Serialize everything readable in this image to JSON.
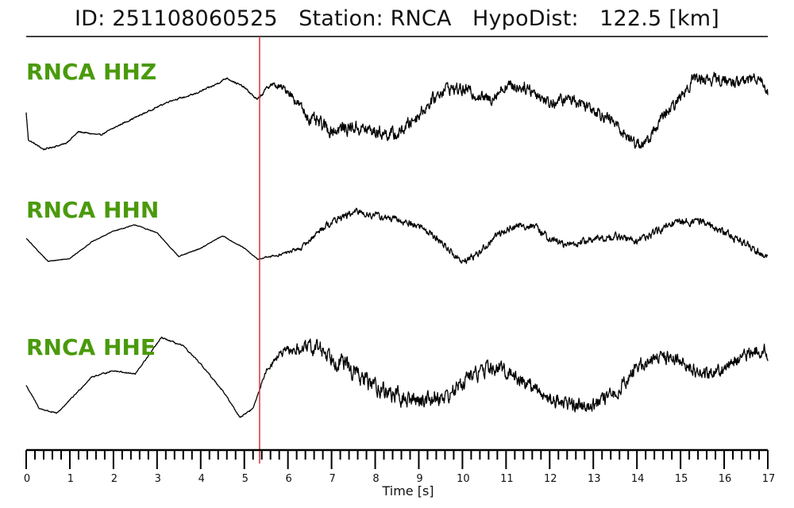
{
  "title": "ID: 251108060525   Station: RNCA   HypoDist:   122.5 [km]",
  "colors": {
    "channel_label": "#4a9a0c",
    "trace": "#000000",
    "pick_line": "#e03030",
    "axis": "#000000"
  },
  "chart_data": {
    "type": "line",
    "title": "ID: 251108060525   Station: RNCA   HypoDist:   122.5 [km]",
    "xlabel": "Time [s]",
    "ylabel": "",
    "xlim": [
      0,
      17
    ],
    "x_ticks": [
      "0",
      "1",
      "2",
      "3",
      "4",
      "5",
      "6",
      "7",
      "8",
      "9",
      "10",
      "11",
      "12",
      "13",
      "14",
      "15",
      "16",
      "17"
    ],
    "minor_tick_step": 0.2,
    "pick_time": 5.35,
    "grid": false,
    "series": [
      {
        "name": "RNCA HHZ",
        "noise": 0.12,
        "envelope": [
          [
            0,
            0.1
          ],
          [
            3.0,
            0.1
          ],
          [
            5.3,
            0.15
          ],
          [
            5.9,
            0.55
          ],
          [
            6.8,
            1.0
          ],
          [
            9.0,
            0.85
          ],
          [
            12.5,
            0.85
          ],
          [
            17,
            0.8
          ]
        ],
        "x": [
          0,
          0.05,
          0.4,
          0.9,
          1.2,
          1.7,
          2.2,
          2.8,
          3.3,
          3.8,
          4.3,
          4.6,
          5.0,
          5.3,
          5.6,
          6.0,
          6.5,
          7.0,
          7.5,
          8.0,
          8.5,
          9.0,
          9.6,
          10.1,
          10.6,
          11.0,
          11.5,
          12.0,
          12.5,
          13.0,
          13.5,
          13.9,
          14.2,
          14.5,
          14.9,
          15.3,
          15.8,
          16.3,
          16.8,
          17.0
        ],
        "y": [
          -0.15,
          -0.72,
          -0.92,
          -0.8,
          -0.55,
          -0.62,
          -0.38,
          -0.12,
          0.1,
          0.22,
          0.42,
          0.58,
          0.38,
          0.12,
          0.45,
          0.32,
          -0.28,
          -0.52,
          -0.45,
          -0.55,
          -0.62,
          -0.18,
          0.38,
          0.32,
          0.12,
          0.42,
          0.38,
          0.05,
          0.15,
          -0.05,
          -0.38,
          -0.75,
          -0.82,
          -0.35,
          0.05,
          0.58,
          0.55,
          0.48,
          0.62,
          0.3
        ]
      },
      {
        "name": "RNCA HHN",
        "noise": 0.1,
        "envelope": [
          [
            0,
            0.08
          ],
          [
            5.3,
            0.1
          ],
          [
            6.0,
            0.35
          ],
          [
            7.0,
            0.75
          ],
          [
            9.5,
            0.75
          ],
          [
            12.0,
            0.8
          ],
          [
            17,
            0.85
          ]
        ],
        "x": [
          0,
          0.5,
          1.0,
          1.5,
          2.0,
          2.5,
          3.0,
          3.5,
          4.0,
          4.5,
          5.0,
          5.3,
          5.8,
          6.3,
          6.8,
          7.2,
          7.6,
          8.1,
          8.6,
          9.1,
          9.6,
          10.0,
          10.4,
          10.8,
          11.2,
          11.6,
          12.0,
          12.4,
          13.0,
          13.5,
          14.0,
          14.5,
          15.0,
          15.5,
          16.0,
          16.5,
          17.0
        ],
        "y": [
          -0.05,
          -0.68,
          -0.6,
          -0.15,
          0.15,
          0.32,
          0.1,
          -0.55,
          -0.32,
          0.02,
          -0.32,
          -0.62,
          -0.5,
          -0.32,
          0.25,
          0.52,
          0.68,
          0.55,
          0.42,
          0.25,
          -0.25,
          -0.72,
          -0.42,
          0.05,
          0.28,
          0.3,
          -0.05,
          -0.25,
          -0.08,
          0.0,
          -0.12,
          0.15,
          0.42,
          0.42,
          0.12,
          -0.2,
          -0.55
        ]
      },
      {
        "name": "RNCA HHE",
        "noise": 0.12,
        "envelope": [
          [
            0,
            0.08
          ],
          [
            5.3,
            0.1
          ],
          [
            6.0,
            0.7
          ],
          [
            7.0,
            1.25
          ],
          [
            8.5,
            1.1
          ],
          [
            11.0,
            1.0
          ],
          [
            17,
            0.85
          ]
        ],
        "x": [
          0,
          0.3,
          0.7,
          1.0,
          1.5,
          2.0,
          2.5,
          2.8,
          3.1,
          3.6,
          4.0,
          4.5,
          4.9,
          5.2,
          5.5,
          5.8,
          6.2,
          6.7,
          7.2,
          7.7,
          8.2,
          8.7,
          9.2,
          9.7,
          10.1,
          10.6,
          11.0,
          11.5,
          12.0,
          12.6,
          13.1,
          13.5,
          14.0,
          14.5,
          15.0,
          15.5,
          16.0,
          16.5,
          16.9,
          17.0
        ],
        "y": [
          -0.25,
          -0.72,
          -0.82,
          -0.55,
          -0.08,
          0.05,
          -0.02,
          0.35,
          0.72,
          0.55,
          0.18,
          -0.35,
          -0.9,
          -0.72,
          0.05,
          0.38,
          0.48,
          0.52,
          0.25,
          -0.12,
          -0.35,
          -0.55,
          -0.52,
          -0.45,
          -0.1,
          0.1,
          0.05,
          -0.22,
          -0.52,
          -0.65,
          -0.62,
          -0.42,
          0.12,
          0.35,
          0.28,
          -0.05,
          0.12,
          0.35,
          0.52,
          0.3
        ]
      }
    ]
  }
}
